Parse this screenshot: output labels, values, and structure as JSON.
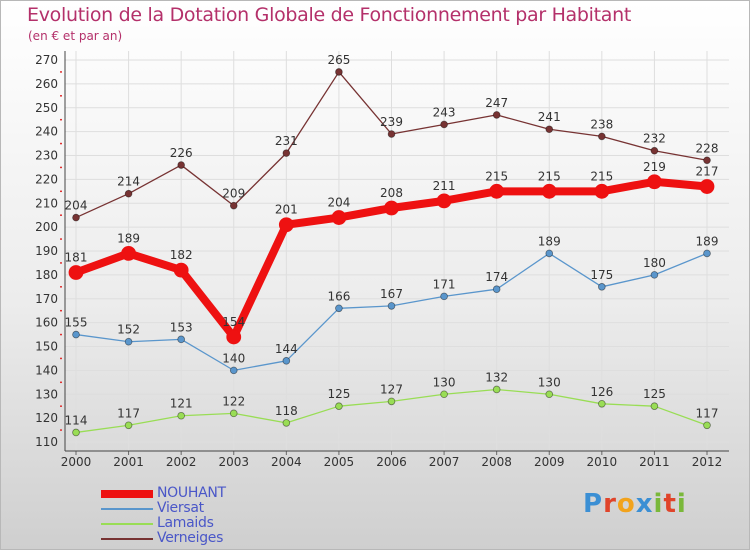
{
  "chart_data": {
    "type": "line",
    "title": "Evolution de la Dotation Globale de Fonctionnement par Habitant",
    "subtitle": "(en € et par an)",
    "xlabel": "",
    "ylabel": "",
    "categories": [
      "2000",
      "2001",
      "2002",
      "2003",
      "2004",
      "2005",
      "2006",
      "2007",
      "2008",
      "2009",
      "2010",
      "2011",
      "2012"
    ],
    "ylim": [
      110,
      270
    ],
    "yticks": [
      110,
      120,
      130,
      140,
      150,
      160,
      170,
      180,
      190,
      200,
      210,
      220,
      230,
      240,
      250,
      260,
      270
    ],
    "grid": true,
    "legend_position": "bottom-left",
    "series": [
      {
        "name": "NOUHANT",
        "color": "#ee1111",
        "emphasis": true,
        "values": [
          181,
          189,
          182,
          154,
          201,
          204,
          208,
          211,
          215,
          215,
          215,
          219,
          217
        ]
      },
      {
        "name": "Viersat",
        "color": "#5a96cc",
        "values": [
          155,
          152,
          153,
          140,
          144,
          166,
          167,
          171,
          174,
          189,
          175,
          180,
          189
        ]
      },
      {
        "name": "Lamaids",
        "color": "#99dd55",
        "values": [
          114,
          117,
          121,
          122,
          118,
          125,
          127,
          130,
          132,
          130,
          126,
          125,
          117
        ]
      },
      {
        "name": "Verneiges",
        "color": "#773333",
        "values": [
          204,
          214,
          226,
          209,
          231,
          265,
          239,
          243,
          247,
          241,
          238,
          232,
          228
        ]
      }
    ]
  },
  "logo": {
    "text": "Proxiti",
    "letters": [
      "P",
      "r",
      "o",
      "x",
      "i",
      "t",
      "i"
    ],
    "colors": [
      "#3b8fd4",
      "#e0442a",
      "#f2a31c",
      "#3b8fd4",
      "#7ab83a",
      "#e0442a",
      "#7ab83a"
    ]
  }
}
